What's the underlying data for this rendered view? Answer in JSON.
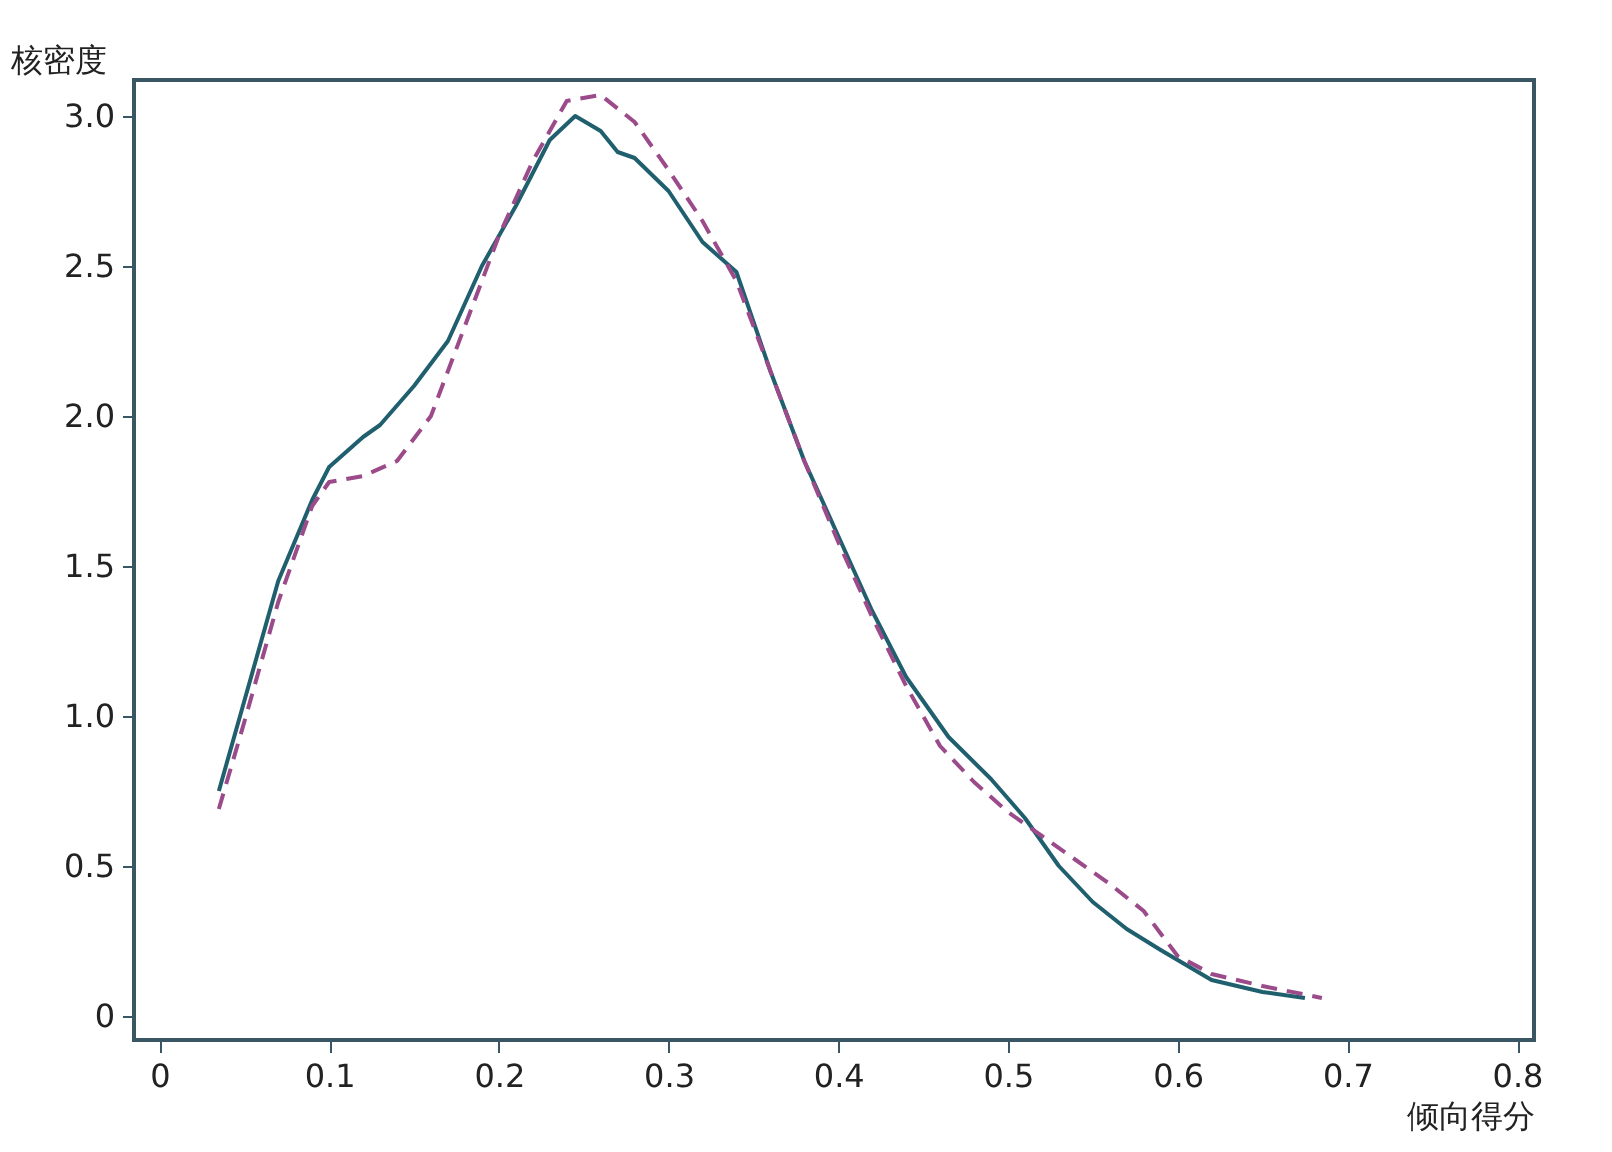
{
  "chart_data": {
    "type": "line",
    "xlabel": "倾向得分",
    "ylabel": "核密度",
    "xlim": [
      -0.015,
      0.81
    ],
    "ylim": [
      -0.08,
      3.12
    ],
    "xticks": [
      0,
      0.1,
      0.2,
      0.3,
      0.4,
      0.5,
      0.6,
      0.7,
      0.8
    ],
    "yticks": [
      0,
      0.5,
      {
        "value": 1,
        "label": "1.0"
      },
      1.5,
      {
        "value": 2,
        "label": "2.0"
      },
      2.5,
      {
        "value": 3,
        "label": "3.0"
      }
    ],
    "grid": false,
    "marker": "none",
    "series": [
      {
        "color": "#1f5f6e",
        "line_style": "solid",
        "x": [
          0.035,
          0.05,
          0.07,
          0.09,
          0.1,
          0.12,
          0.13,
          0.15,
          0.17,
          0.19,
          0.21,
          0.23,
          0.245,
          0.26,
          0.27,
          0.28,
          0.3,
          0.32,
          0.34,
          0.36,
          0.38,
          0.4,
          0.42,
          0.44,
          0.465,
          0.49,
          0.51,
          0.53,
          0.55,
          0.57,
          0.59,
          0.62,
          0.65,
          0.675
        ],
        "values": [
          0.75,
          1.05,
          1.45,
          1.72,
          1.83,
          1.93,
          1.97,
          2.1,
          2.25,
          2.5,
          2.7,
          2.92,
          3.0,
          2.95,
          2.88,
          2.86,
          2.75,
          2.58,
          2.48,
          2.15,
          1.85,
          1.6,
          1.35,
          1.13,
          0.93,
          0.79,
          0.66,
          0.5,
          0.38,
          0.29,
          0.22,
          0.12,
          0.08,
          0.06
        ]
      },
      {
        "color": "#9b4a8a",
        "line_style": "dashed",
        "x": [
          0.035,
          0.05,
          0.07,
          0.09,
          0.1,
          0.12,
          0.14,
          0.16,
          0.18,
          0.2,
          0.22,
          0.24,
          0.26,
          0.28,
          0.3,
          0.32,
          0.34,
          0.36,
          0.38,
          0.4,
          0.42,
          0.44,
          0.46,
          0.48,
          0.5,
          0.52,
          0.54,
          0.56,
          0.58,
          0.6,
          0.62,
          0.65,
          0.685
        ],
        "values": [
          0.69,
          0.98,
          1.38,
          1.7,
          1.78,
          1.8,
          1.85,
          2.0,
          2.3,
          2.6,
          2.85,
          3.05,
          3.07,
          2.98,
          2.82,
          2.65,
          2.45,
          2.15,
          1.85,
          1.58,
          1.33,
          1.1,
          0.9,
          0.78,
          0.68,
          0.6,
          0.52,
          0.44,
          0.35,
          0.2,
          0.14,
          0.1,
          0.06
        ]
      }
    ]
  }
}
